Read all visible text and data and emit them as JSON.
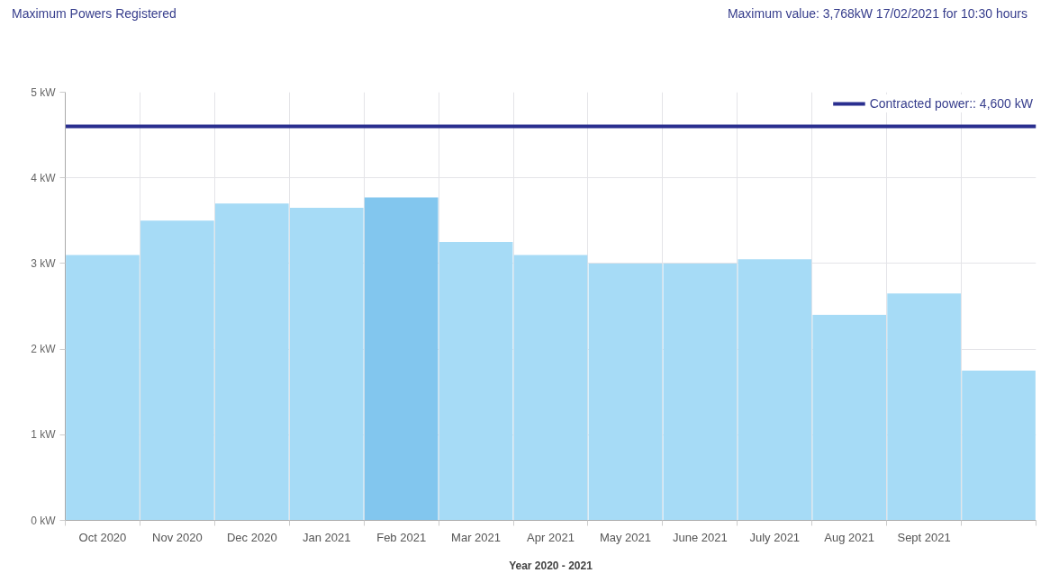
{
  "chart_data": {
    "type": "bar",
    "title": "Maximum Powers Registered",
    "annotations": [
      "Maximum value: 3,768kW 17/02/2021 for 10:30 hours"
    ],
    "xlabel": "Year 2020 - 2021",
    "categories": [
      "Oct 2020",
      "Nov 2020",
      "Dec 2020",
      "Jan 2021",
      "Feb 2021",
      "Mar 2021",
      "Apr 2021",
      "May 2021",
      "June 2021",
      "July 2021",
      "Aug 2021",
      "Sept 2021",
      null
    ],
    "values": [
      3.1,
      3.5,
      3.7,
      3.65,
      3.77,
      3.25,
      3.1,
      3.0,
      3.0,
      3.05,
      2.4,
      2.65,
      1.75
    ],
    "colors": [
      "#a6dbf6",
      "#a6dbf6",
      "#a6dbf6",
      "#a6dbf6",
      "#82c6ee",
      "#a6dbf6",
      "#a6dbf6",
      "#a6dbf6",
      "#a6dbf6",
      "#a6dbf6",
      "#a6dbf6",
      "#a6dbf6",
      "#a6dbf6"
    ],
    "ylim": [
      0,
      5
    ],
    "yticks": [
      {
        "value": 0,
        "label": "0 kW"
      },
      {
        "value": 1,
        "label": "1 kW"
      },
      {
        "value": 2,
        "label": "2 kW"
      },
      {
        "value": 3,
        "label": "3 kW"
      },
      {
        "value": 4,
        "label": "4 kW"
      },
      {
        "value": 5,
        "label": "5 kW"
      }
    ],
    "ref_lines": [
      {
        "axis": "y",
        "value": 4.6,
        "label": "Contracted power:: 4,600 kW",
        "color": "#2a2f8f"
      }
    ],
    "grid": true,
    "legend": "top right"
  }
}
